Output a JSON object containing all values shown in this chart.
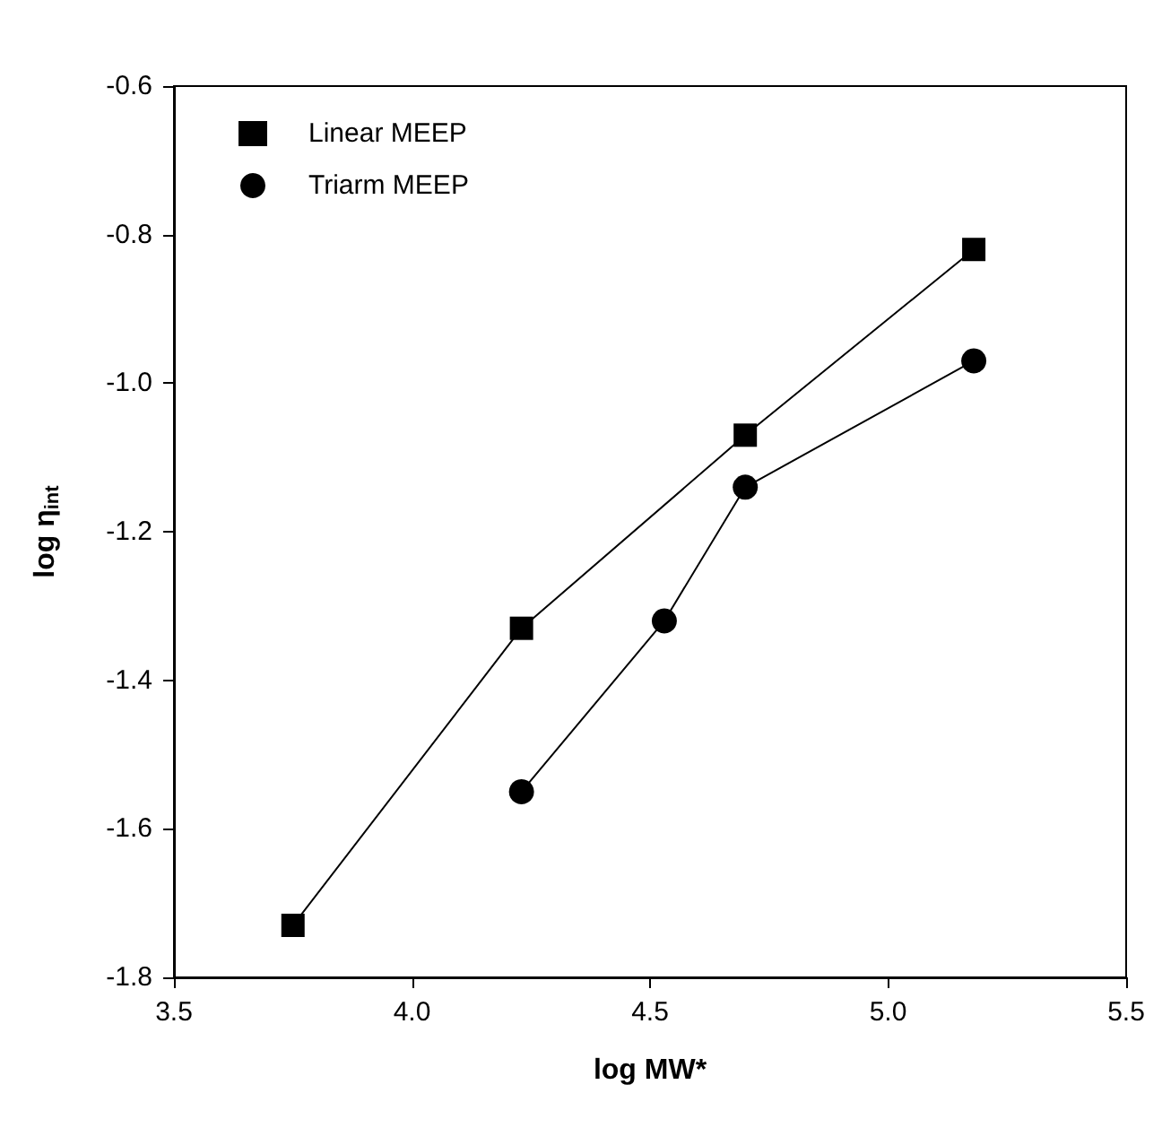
{
  "chart_data": {
    "type": "line",
    "xlabel": "log MW*",
    "ylabel": "log η$_{int}$",
    "xlim": [
      3.5,
      5.5
    ],
    "xticks": [
      3.5,
      {
        "value": 4,
        "label": "4.0"
      },
      4.5,
      {
        "value": 5,
        "label": "5.0"
      },
      5.5
    ],
    "ylim": [
      -1.8,
      -0.6
    ],
    "yticks": [
      -1.8,
      -1.6,
      -1.4,
      -1.2,
      {
        "value": -1,
        "label": "-1.0"
      },
      -0.8,
      -0.6
    ],
    "grid": false,
    "legend": "top left",
    "line_style": "solid",
    "series": [
      {
        "name": "Linear MEEP",
        "color": "#000000",
        "marker": "square",
        "x": [
          3.75,
          4.23,
          4.7,
          5.18
        ],
        "values": [
          -1.73,
          -1.33,
          -1.07,
          -0.82
        ]
      },
      {
        "name": "Triarm MEEP",
        "color": "#000000",
        "marker": "circle",
        "x": [
          4.23,
          4.53,
          4.7,
          5.18
        ],
        "values": [
          -1.55,
          -1.32,
          -1.14,
          -0.97
        ]
      }
    ]
  }
}
